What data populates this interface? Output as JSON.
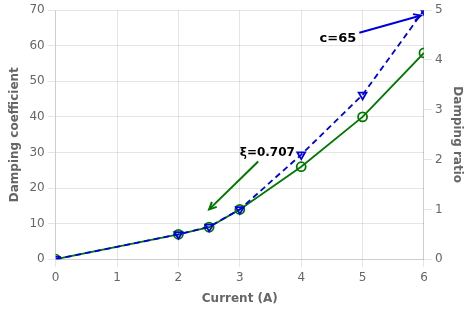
{
  "chart_data": {
    "type": "line",
    "x": [
      0,
      2,
      2.5,
      3,
      4,
      5,
      6
    ],
    "series": [
      {
        "color": "#0000DD",
        "axis": "y2",
        "marker": "triangle_down",
        "line_style": "dashed",
        "values": [
          0,
          0.5,
          0.65,
          1.0,
          2.1,
          3.3,
          5.0
        ]
      },
      {
        "color": "#007700",
        "axis": "y",
        "marker": "circle",
        "line_style": "solid",
        "values": [
          0,
          7,
          9,
          14,
          26,
          40,
          58
        ]
      }
    ],
    "xlabel": "Current (A)",
    "ylabel": "Damping coefficient",
    "y2label": "Damping ratio",
    "xlim": [
      0,
      6
    ],
    "xticks": [
      0,
      1,
      2,
      3,
      4,
      5,
      6
    ],
    "ylim": [
      0,
      70
    ],
    "yticks": [
      0,
      10,
      20,
      30,
      40,
      50,
      60,
      70
    ],
    "y2lim": [
      0,
      5
    ],
    "y2ticks": [
      0,
      1,
      2,
      3,
      4,
      5
    ],
    "grid": true,
    "annotations": [
      {
        "text": "c=65",
        "x": 5.95,
        "y": 68.5,
        "text_x": 4.3,
        "text_y": 62,
        "color": "#0000DD"
      },
      {
        "text": "ξ=0.707",
        "x": 2.5,
        "y": 14,
        "text_x": 3.0,
        "text_y": 30,
        "color": "#007700"
      }
    ]
  }
}
